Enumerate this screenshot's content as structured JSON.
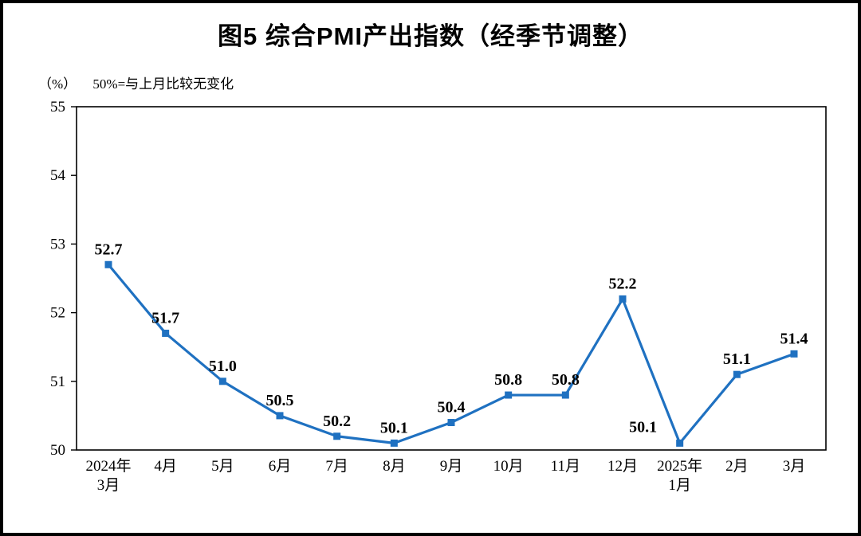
{
  "title": "图5  综合PMI产出指数（经季节调整）",
  "subtitle": {
    "unit": "（%）",
    "note": "50%=与上月比较无变化"
  },
  "chart_data": {
    "type": "line",
    "title": "图5  综合PMI产出指数（经季节调整）",
    "xlabel": "",
    "ylabel": "（%）",
    "categories": [
      "2024年\n3月",
      "4月",
      "5月",
      "6月",
      "7月",
      "8月",
      "9月",
      "10月",
      "11月",
      "12月",
      "2025年\n1月",
      "2月",
      "3月"
    ],
    "values": [
      52.7,
      51.7,
      51.0,
      50.5,
      50.2,
      50.1,
      50.4,
      50.8,
      50.8,
      52.2,
      50.1,
      51.1,
      51.4
    ],
    "labels": [
      "52.7",
      "51.7",
      "51.0",
      "50.5",
      "50.2",
      "50.1",
      "50.4",
      "50.8",
      "50.8",
      "52.2",
      "50.1",
      "51.1",
      "51.4"
    ],
    "ylim": [
      50,
      55
    ],
    "yticks": [
      50,
      51,
      52,
      53,
      54,
      55
    ],
    "line_color": "#1F71C1",
    "marker": "square",
    "grid": false,
    "legend": "none",
    "label_offsets": {
      "10": {
        "dx": -46,
        "dy": -14
      }
    }
  }
}
